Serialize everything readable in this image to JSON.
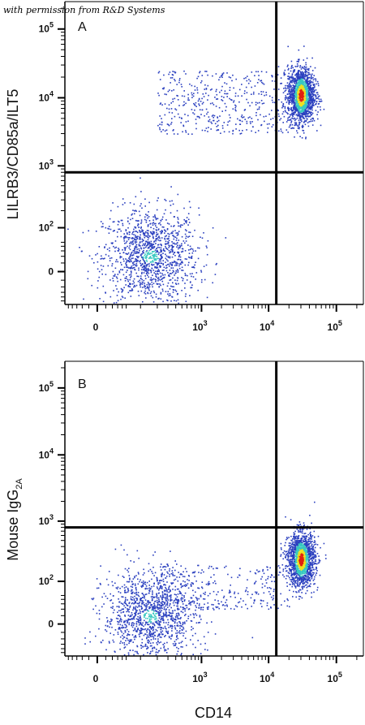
{
  "annotation": "with permission from R&D Systems",
  "colors": {
    "axis": "#000000",
    "gate": "#000000",
    "density_low": "#2a3fbf",
    "density_mid": "#38c8c0",
    "density_high": "#f0e020",
    "density_peak": "#e02010"
  },
  "chart_data": [
    {
      "type": "scatter",
      "panel_label": "A",
      "ylabel": "LILRB3/CD85a/ILT5",
      "xlabel": "",
      "scale": "biexponential",
      "x_ticks": [
        {
          "value": 0,
          "label": "0",
          "sup": ""
        },
        {
          "value": 1000,
          "label": "10",
          "sup": "3"
        },
        {
          "value": 10000,
          "label": "10",
          "sup": "4"
        },
        {
          "value": 100000,
          "label": "10",
          "sup": "5"
        }
      ],
      "y_ticks": [
        {
          "value": 0,
          "label": "0",
          "sup": ""
        },
        {
          "value": 100,
          "label": "10",
          "sup": "2"
        },
        {
          "value": 1000,
          "label": "10",
          "sup": "3"
        },
        {
          "value": 10000,
          "label": "10",
          "sup": "4"
        },
        {
          "value": 100000,
          "label": "10",
          "sup": "5"
        }
      ],
      "quadrant_gate": {
        "x": 13000,
        "y": 800
      },
      "populations": [
        {
          "name_hint": "CD14- LILRB3- lymphocytes",
          "x_center": 150,
          "y_center": 20,
          "n": 1300,
          "density": "medium"
        },
        {
          "name_hint": "CD14+ LILRB3+ monocytes",
          "x_center": 30000,
          "y_center": 11000,
          "n": 1600,
          "density": "high"
        },
        {
          "name_hint": "intermediate smear",
          "x_range": [
            200,
            20000
          ],
          "y_range": [
            3000,
            25000
          ],
          "n": 450,
          "density": "low"
        }
      ]
    },
    {
      "type": "scatter",
      "panel_label": "B",
      "ylabel": "Mouse IgG",
      "ylabel_sub": "2A",
      "xlabel": "CD14",
      "scale": "biexponential",
      "x_ticks": [
        {
          "value": 0,
          "label": "0",
          "sup": ""
        },
        {
          "value": 1000,
          "label": "10",
          "sup": "3"
        },
        {
          "value": 10000,
          "label": "10",
          "sup": "4"
        },
        {
          "value": 100000,
          "label": "10",
          "sup": "5"
        }
      ],
      "y_ticks": [
        {
          "value": 0,
          "label": "0",
          "sup": ""
        },
        {
          "value": 100,
          "label": "10",
          "sup": "2"
        },
        {
          "value": 1000,
          "label": "10",
          "sup": "3"
        },
        {
          "value": 10000,
          "label": "10",
          "sup": "4"
        },
        {
          "value": 100000,
          "label": "10",
          "sup": "5"
        }
      ],
      "quadrant_gate": {
        "x": 13000,
        "y": 800
      },
      "populations": [
        {
          "name_hint": "CD14- isotype",
          "x_center": 150,
          "y_center": 10,
          "n": 1300,
          "density": "medium"
        },
        {
          "name_hint": "CD14+ isotype",
          "x_center": 30000,
          "y_center": 250,
          "n": 1600,
          "density": "high"
        },
        {
          "name_hint": "intermediate smear",
          "x_range": [
            200,
            20000
          ],
          "y_range": [
            20,
            200
          ],
          "n": 300,
          "density": "low"
        }
      ]
    }
  ]
}
